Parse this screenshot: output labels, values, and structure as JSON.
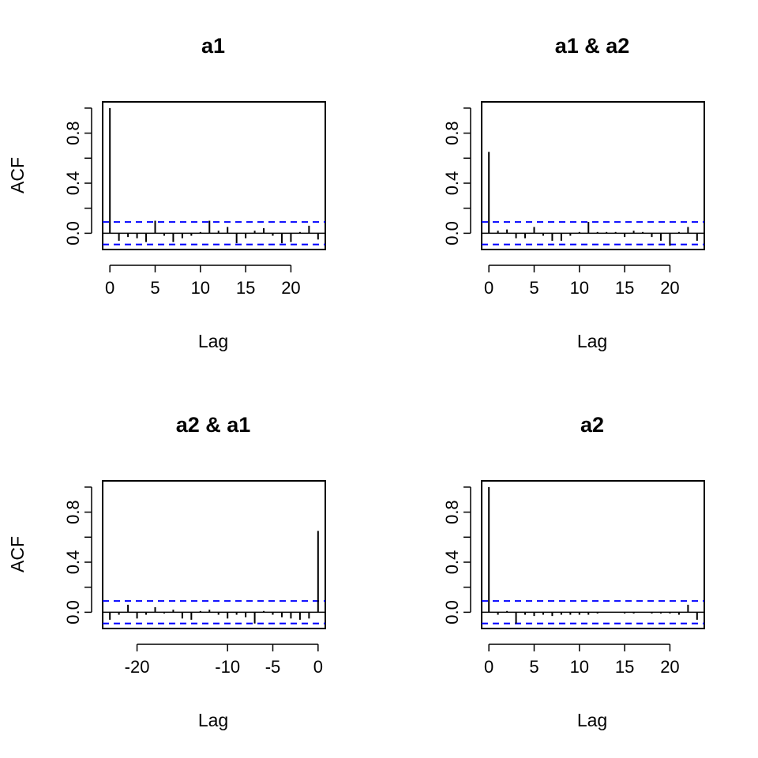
{
  "chart_data": [
    {
      "type": "bar",
      "title": "a1",
      "xlabel": "Lag",
      "ylabel": "ACF",
      "xlim": [
        -0.8,
        23.8
      ],
      "ylim": [
        -0.13,
        1.05
      ],
      "xticks": [
        0,
        5,
        10,
        15,
        20
      ],
      "yticks": [
        0.0,
        0.2,
        0.4,
        0.6,
        0.8,
        1.0
      ],
      "ytick_labels": [
        "0.0",
        "",
        "0.4",
        "",
        "0.8",
        ""
      ],
      "ci": 0.09,
      "lags": [
        0,
        1,
        2,
        3,
        4,
        5,
        6,
        7,
        8,
        9,
        10,
        11,
        12,
        13,
        14,
        15,
        16,
        17,
        18,
        19,
        20,
        21,
        22,
        23
      ],
      "values": [
        1.0,
        -0.06,
        -0.03,
        -0.04,
        -0.07,
        0.1,
        -0.02,
        -0.07,
        -0.04,
        -0.02,
        0.01,
        0.1,
        0.02,
        0.05,
        -0.08,
        -0.04,
        0.02,
        0.04,
        -0.02,
        -0.08,
        -0.07,
        0.01,
        0.06,
        -0.05
      ]
    },
    {
      "type": "bar",
      "title": "a1 & a2",
      "xlabel": "Lag",
      "ylabel": "",
      "xlim": [
        -0.8,
        23.8
      ],
      "ylim": [
        -0.13,
        1.05
      ],
      "xticks": [
        0,
        5,
        10,
        15,
        20
      ],
      "yticks": [
        0.0,
        0.2,
        0.4,
        0.6,
        0.8,
        1.0
      ],
      "ytick_labels": [
        "0.0",
        "",
        "0.4",
        "",
        "0.8",
        ""
      ],
      "ci": 0.09,
      "lags": [
        0,
        1,
        2,
        3,
        4,
        5,
        6,
        7,
        8,
        9,
        10,
        11,
        12,
        13,
        14,
        15,
        16,
        17,
        18,
        19,
        20,
        21,
        22,
        23
      ],
      "values": [
        0.65,
        0.02,
        0.03,
        -0.04,
        -0.04,
        0.05,
        -0.02,
        -0.06,
        -0.06,
        -0.02,
        0.01,
        0.09,
        0.01,
        0.01,
        0.01,
        -0.03,
        0.02,
        0.01,
        -0.03,
        -0.06,
        -0.1,
        0.01,
        0.05,
        -0.06
      ]
    },
    {
      "type": "bar",
      "title": "a2 & a1",
      "xlabel": "Lag",
      "ylabel": "ACF",
      "xlim": [
        -23.8,
        0.8
      ],
      "ylim": [
        -0.13,
        1.05
      ],
      "xticks": [
        -20,
        -10,
        -5,
        0
      ],
      "yticks": [
        0.0,
        0.2,
        0.4,
        0.6,
        0.8,
        1.0
      ],
      "ytick_labels": [
        "0.0",
        "",
        "0.4",
        "",
        "0.8",
        ""
      ],
      "ci": 0.09,
      "lags": [
        0,
        -1,
        -2,
        -3,
        -4,
        -5,
        -6,
        -7,
        -8,
        -9,
        -10,
        -11,
        -12,
        -13,
        -14,
        -15,
        -16,
        -17,
        -18,
        -19,
        -20,
        -21,
        -22,
        -23
      ],
      "values": [
        0.65,
        -0.05,
        -0.06,
        -0.05,
        -0.04,
        -0.02,
        0.01,
        -0.09,
        -0.04,
        -0.02,
        -0.05,
        -0.02,
        0.02,
        0.01,
        -0.06,
        -0.05,
        0.02,
        -0.01,
        0.04,
        -0.02,
        -0.05,
        0.06,
        -0.02,
        -0.06
      ]
    },
    {
      "type": "bar",
      "title": "a2",
      "xlabel": "Lag",
      "ylabel": "",
      "xlim": [
        -0.8,
        23.8
      ],
      "ylim": [
        -0.13,
        1.05
      ],
      "xticks": [
        0,
        5,
        10,
        15,
        20
      ],
      "yticks": [
        0.0,
        0.2,
        0.4,
        0.6,
        0.8,
        1.0
      ],
      "ytick_labels": [
        "0.0",
        "",
        "0.4",
        "",
        "0.8",
        ""
      ],
      "ci": 0.09,
      "lags": [
        0,
        1,
        2,
        3,
        4,
        5,
        6,
        7,
        8,
        9,
        10,
        11,
        12,
        13,
        14,
        15,
        16,
        17,
        18,
        19,
        20,
        21,
        22,
        23
      ],
      "values": [
        1.0,
        -0.02,
        0.01,
        -0.09,
        -0.02,
        -0.03,
        -0.02,
        -0.03,
        -0.02,
        -0.02,
        -0.02,
        -0.02,
        -0.01,
        0.0,
        0.0,
        -0.01,
        -0.01,
        0.0,
        -0.01,
        -0.01,
        -0.01,
        -0.02,
        0.06,
        -0.06
      ]
    }
  ]
}
